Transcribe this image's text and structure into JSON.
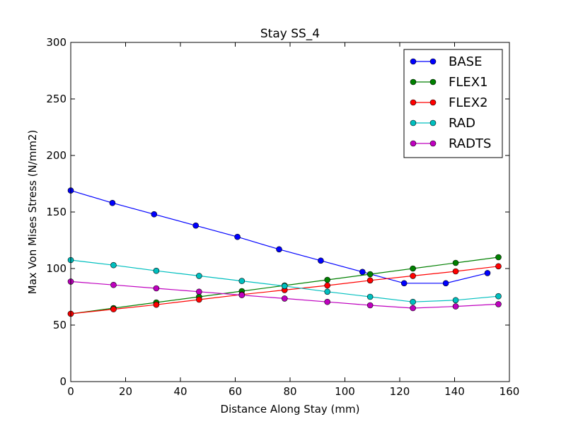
{
  "chart_data": {
    "type": "line",
    "title": "Stay SS_4",
    "xlabel": "Distance Along Stay (mm)",
    "ylabel": "Max Von Mises Stress (N/mm2)",
    "xlim": [
      0,
      160
    ],
    "ylim": [
      0,
      300
    ],
    "xticks": [
      0,
      20,
      40,
      60,
      80,
      100,
      120,
      140,
      160
    ],
    "yticks": [
      0,
      50,
      100,
      150,
      200,
      250,
      300
    ],
    "grid": false,
    "legend_position": "top-right",
    "series": [
      {
        "name": "BASE",
        "color": "#0000ff",
        "x": [
          0,
          15.2,
          30.4,
          45.6,
          60.8,
          76.0,
          91.2,
          106.4,
          121.6,
          136.8,
          152.0
        ],
        "y": [
          169,
          158,
          148,
          138,
          128,
          117,
          107,
          97,
          87,
          87,
          96
        ]
      },
      {
        "name": "FLEX1",
        "color": "#008000",
        "x": [
          0,
          15.6,
          31.2,
          46.8,
          62.4,
          78.0,
          93.6,
          109.2,
          124.8,
          140.4,
          156.0
        ],
        "y": [
          60,
          65,
          70,
          75,
          80,
          85,
          90,
          95,
          100,
          105,
          110
        ]
      },
      {
        "name": "FLEX2",
        "color": "#ff0000",
        "x": [
          0,
          15.6,
          31.2,
          46.8,
          62.4,
          78.0,
          93.6,
          109.2,
          124.8,
          140.4,
          156.0
        ],
        "y": [
          60,
          64,
          68,
          72.5,
          77,
          81,
          85,
          89.5,
          93.5,
          97.5,
          102
        ]
      },
      {
        "name": "RAD",
        "color": "#00bfbf",
        "x": [
          0,
          15.6,
          31.2,
          46.8,
          62.4,
          78.0,
          93.6,
          109.2,
          124.8,
          140.4,
          156.0
        ],
        "y": [
          107.5,
          103,
          98,
          93.5,
          89,
          84.5,
          79.5,
          75,
          70.5,
          72,
          75.5
        ]
      },
      {
        "name": "RADTS",
        "color": "#bf00bf",
        "x": [
          0,
          15.6,
          31.2,
          46.8,
          62.4,
          78.0,
          93.6,
          109.2,
          124.8,
          140.4,
          156.0
        ],
        "y": [
          88.5,
          85.5,
          82.5,
          79.5,
          76.5,
          73.5,
          70.5,
          67.5,
          65,
          66.5,
          68.5
        ]
      }
    ]
  }
}
